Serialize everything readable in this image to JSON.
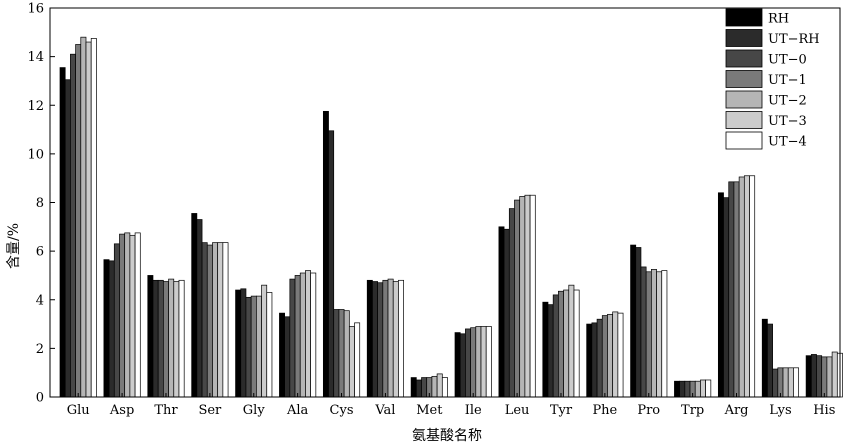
{
  "chart_data": {
    "type": "bar",
    "title": "",
    "xlabel": "氨基酸名称",
    "ylabel": "含量/%",
    "ylim": [
      0,
      16
    ],
    "yticks": [
      0,
      2,
      4,
      6,
      8,
      10,
      12,
      14,
      16
    ],
    "grid": false,
    "legend_position": "top-right",
    "categories": [
      "Glu",
      "Asp",
      "Thr",
      "Ser",
      "Gly",
      "Ala",
      "Cys",
      "Val",
      "Met",
      "Ile",
      "Leu",
      "Tyr",
      "Phe",
      "Pro",
      "Trp",
      "Arg",
      "Lys",
      "His"
    ],
    "series": [
      {
        "name": "RH",
        "color": "#000000",
        "values": [
          13.55,
          5.65,
          5.0,
          7.55,
          4.4,
          3.45,
          11.75,
          4.8,
          0.8,
          2.65,
          7.0,
          3.9,
          3.0,
          6.25,
          0.65,
          8.4,
          3.2,
          1.7
        ]
      },
      {
        "name": "UT−RH",
        "color": "#2b2b2b",
        "values": [
          13.05,
          5.6,
          4.8,
          7.3,
          4.45,
          3.3,
          10.95,
          4.75,
          0.7,
          2.6,
          6.9,
          3.8,
          3.05,
          6.15,
          0.65,
          8.2,
          3.0,
          1.75
        ]
      },
      {
        "name": "UT−0",
        "color": "#474747",
        "values": [
          14.1,
          6.3,
          4.8,
          6.35,
          4.1,
          4.85,
          3.6,
          4.7,
          0.8,
          2.8,
          7.75,
          4.2,
          3.2,
          5.35,
          0.65,
          8.85,
          1.15,
          1.7
        ]
      },
      {
        "name": "UT−1",
        "color": "#7a7a7a",
        "values": [
          14.5,
          6.7,
          4.75,
          6.25,
          4.15,
          5.0,
          3.6,
          4.8,
          0.8,
          2.85,
          8.1,
          4.35,
          3.35,
          5.15,
          0.65,
          8.85,
          1.2,
          1.65
        ]
      },
      {
        "name": "UT−2",
        "color": "#b5b5b5",
        "values": [
          14.8,
          6.75,
          4.85,
          6.35,
          4.15,
          5.1,
          3.55,
          4.85,
          0.85,
          2.9,
          8.25,
          4.4,
          3.4,
          5.25,
          0.65,
          9.05,
          1.2,
          1.65
        ]
      },
      {
        "name": "UT−3",
        "color": "#cccccc",
        "values": [
          14.6,
          6.65,
          4.75,
          6.35,
          4.6,
          5.2,
          2.9,
          4.75,
          0.95,
          2.9,
          8.3,
          4.6,
          3.5,
          5.15,
          0.7,
          9.1,
          1.2,
          1.85
        ]
      },
      {
        "name": "UT−4",
        "color": "#ffffff",
        "values": [
          14.75,
          6.75,
          4.8,
          6.35,
          4.3,
          5.1,
          3.05,
          4.8,
          0.8,
          2.9,
          8.3,
          4.4,
          3.45,
          5.2,
          0.7,
          9.1,
          1.2,
          1.8
        ]
      }
    ]
  }
}
